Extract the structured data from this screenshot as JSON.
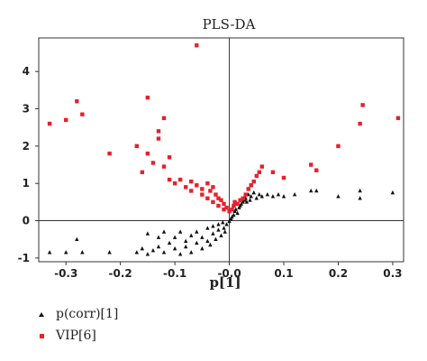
{
  "chart_data": {
    "type": "scatter",
    "title": "PLS-DA",
    "xlabel": "p[1]",
    "ylabel": "",
    "xlim": [
      -0.35,
      0.32
    ],
    "ylim": [
      -1.1,
      4.9
    ],
    "xticks": [
      -0.3,
      -0.2,
      -0.1,
      0.0,
      0.1,
      0.2,
      0.3
    ],
    "xtick_labels": [
      "-0.3",
      "-0.2",
      "-0.1",
      "-0.0",
      "0.1",
      "0.2",
      "0.3"
    ],
    "yticks": [
      -1,
      0,
      1,
      2,
      3,
      4
    ],
    "ytick_labels": [
      "-1",
      "0",
      "1",
      "2",
      "3",
      "4"
    ],
    "grid": false,
    "reference_lines": {
      "x": 0,
      "y": 0
    },
    "legend_position": "bottom-left",
    "series": [
      {
        "name": "p(corr)[1]",
        "marker": "triangle",
        "color": "#111111",
        "points": [
          [
            -0.33,
            -0.85
          ],
          [
            -0.3,
            -0.85
          ],
          [
            -0.28,
            -0.5
          ],
          [
            -0.27,
            -0.85
          ],
          [
            -0.22,
            -0.85
          ],
          [
            -0.17,
            -0.85
          ],
          [
            -0.16,
            -0.75
          ],
          [
            -0.15,
            -0.9
          ],
          [
            -0.15,
            -0.35
          ],
          [
            -0.14,
            -0.8
          ],
          [
            -0.13,
            -0.45
          ],
          [
            -0.13,
            -0.7
          ],
          [
            -0.12,
            -0.3
          ],
          [
            -0.12,
            -0.85
          ],
          [
            -0.11,
            -0.6
          ],
          [
            -0.1,
            -0.45
          ],
          [
            -0.1,
            -0.75
          ],
          [
            -0.09,
            -0.3
          ],
          [
            -0.09,
            -0.9
          ],
          [
            -0.08,
            -0.55
          ],
          [
            -0.08,
            -0.7
          ],
          [
            -0.07,
            -0.4
          ],
          [
            -0.07,
            -0.85
          ],
          [
            -0.06,
            -0.3
          ],
          [
            -0.06,
            -0.6
          ],
          [
            -0.05,
            -0.75
          ],
          [
            -0.05,
            -0.45
          ],
          [
            -0.04,
            -0.55
          ],
          [
            -0.04,
            -0.2
          ],
          [
            -0.035,
            -0.65
          ],
          [
            -0.03,
            -0.35
          ],
          [
            -0.03,
            -0.15
          ],
          [
            -0.025,
            -0.5
          ],
          [
            -0.02,
            -0.25
          ],
          [
            -0.02,
            -0.1
          ],
          [
            -0.015,
            -0.4
          ],
          [
            -0.012,
            -0.05
          ],
          [
            -0.01,
            -0.2
          ],
          [
            -0.008,
            -0.3
          ],
          [
            -0.005,
            -0.1
          ],
          [
            0.0,
            -0.02
          ],
          [
            0.003,
            0.05
          ],
          [
            0.005,
            0.1
          ],
          [
            0.008,
            0.15
          ],
          [
            0.01,
            0.25
          ],
          [
            0.012,
            0.3
          ],
          [
            0.015,
            0.2
          ],
          [
            0.018,
            0.35
          ],
          [
            0.02,
            0.4
          ],
          [
            0.022,
            0.45
          ],
          [
            0.025,
            0.5
          ],
          [
            0.028,
            0.55
          ],
          [
            0.03,
            0.6
          ],
          [
            0.032,
            0.5
          ],
          [
            0.035,
            0.7
          ],
          [
            0.038,
            0.55
          ],
          [
            0.04,
            0.65
          ],
          [
            0.045,
            0.75
          ],
          [
            0.05,
            0.6
          ],
          [
            0.055,
            0.7
          ],
          [
            0.06,
            0.65
          ],
          [
            0.07,
            0.7
          ],
          [
            0.08,
            0.65
          ],
          [
            0.09,
            0.7
          ],
          [
            0.1,
            0.65
          ],
          [
            0.12,
            0.7
          ],
          [
            0.15,
            0.8
          ],
          [
            0.16,
            0.8
          ],
          [
            0.2,
            0.65
          ],
          [
            0.24,
            0.8
          ],
          [
            0.24,
            0.6
          ],
          [
            0.3,
            0.75
          ]
        ]
      },
      {
        "name": "VIP[6]",
        "marker": "square",
        "color": "#e8202a",
        "points": [
          [
            -0.33,
            2.6
          ],
          [
            -0.3,
            2.7
          ],
          [
            -0.28,
            3.2
          ],
          [
            -0.27,
            2.85
          ],
          [
            -0.22,
            1.8
          ],
          [
            -0.15,
            3.3
          ],
          [
            -0.17,
            2.0
          ],
          [
            -0.16,
            1.3
          ],
          [
            -0.15,
            1.8
          ],
          [
            -0.14,
            1.55
          ],
          [
            -0.13,
            2.2
          ],
          [
            -0.13,
            2.4
          ],
          [
            -0.12,
            2.75
          ],
          [
            -0.12,
            1.45
          ],
          [
            -0.11,
            1.7
          ],
          [
            -0.11,
            1.1
          ],
          [
            -0.1,
            1.0
          ],
          [
            -0.09,
            1.1
          ],
          [
            -0.08,
            0.9
          ],
          [
            -0.07,
            1.05
          ],
          [
            -0.07,
            0.8
          ],
          [
            -0.06,
            0.95
          ],
          [
            -0.06,
            4.7
          ],
          [
            -0.05,
            0.85
          ],
          [
            -0.05,
            0.7
          ],
          [
            -0.04,
            1.0
          ],
          [
            -0.04,
            0.6
          ],
          [
            -0.035,
            0.8
          ],
          [
            -0.03,
            0.9
          ],
          [
            -0.03,
            0.5
          ],
          [
            -0.025,
            0.7
          ],
          [
            -0.02,
            0.6
          ],
          [
            -0.02,
            0.4
          ],
          [
            -0.015,
            0.55
          ],
          [
            -0.01,
            0.45
          ],
          [
            -0.01,
            0.3
          ],
          [
            -0.005,
            0.35
          ],
          [
            0.0,
            0.25
          ],
          [
            0.005,
            0.3
          ],
          [
            0.008,
            0.4
          ],
          [
            0.01,
            0.5
          ],
          [
            0.015,
            0.45
          ],
          [
            0.02,
            0.55
          ],
          [
            0.025,
            0.6
          ],
          [
            0.03,
            0.7
          ],
          [
            0.035,
            0.85
          ],
          [
            0.04,
            0.95
          ],
          [
            0.045,
            1.05
          ],
          [
            0.05,
            1.2
          ],
          [
            0.055,
            1.3
          ],
          [
            0.06,
            1.45
          ],
          [
            0.08,
            1.3
          ],
          [
            0.1,
            1.15
          ],
          [
            0.15,
            1.5
          ],
          [
            0.16,
            1.35
          ],
          [
            0.2,
            2.0
          ],
          [
            0.24,
            2.6
          ],
          [
            0.245,
            3.1
          ],
          [
            0.31,
            2.75
          ]
        ]
      }
    ]
  }
}
